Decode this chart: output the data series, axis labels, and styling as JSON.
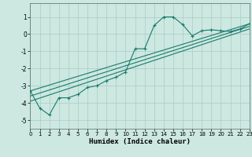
{
  "xlabel": "Humidex (Indice chaleur)",
  "ylabel": "",
  "bg_color": "#cce8e0",
  "grid_color": "#aaccc4",
  "line_color": "#1a7a6e",
  "xlim": [
    0,
    23
  ],
  "ylim": [
    -5.5,
    1.8
  ],
  "yticks": [
    1,
    0,
    -1,
    -2,
    -3,
    -4,
    -5
  ],
  "xticks": [
    0,
    1,
    2,
    3,
    4,
    5,
    6,
    7,
    8,
    9,
    10,
    11,
    12,
    13,
    14,
    15,
    16,
    17,
    18,
    19,
    20,
    21,
    22,
    23
  ],
  "series1_x": [
    0,
    1,
    2,
    3,
    4,
    5,
    6,
    7,
    8,
    9,
    10,
    11,
    12,
    13,
    14,
    15,
    16,
    17,
    18,
    19,
    20,
    21,
    22,
    23
  ],
  "series1_y": [
    -3.3,
    -4.3,
    -4.7,
    -3.7,
    -3.7,
    -3.5,
    -3.1,
    -3.0,
    -2.7,
    -2.5,
    -2.2,
    -0.85,
    -0.85,
    0.5,
    1.0,
    1.0,
    0.55,
    -0.1,
    0.2,
    0.25,
    0.2,
    0.15,
    0.3,
    0.6
  ],
  "series2_x": [
    0,
    23
  ],
  "series2_y": [
    -3.3,
    0.6
  ],
  "series3_x": [
    0,
    23
  ],
  "series3_y": [
    -3.6,
    0.45
  ],
  "series4_x": [
    0,
    23
  ],
  "series4_y": [
    -3.9,
    0.3
  ]
}
